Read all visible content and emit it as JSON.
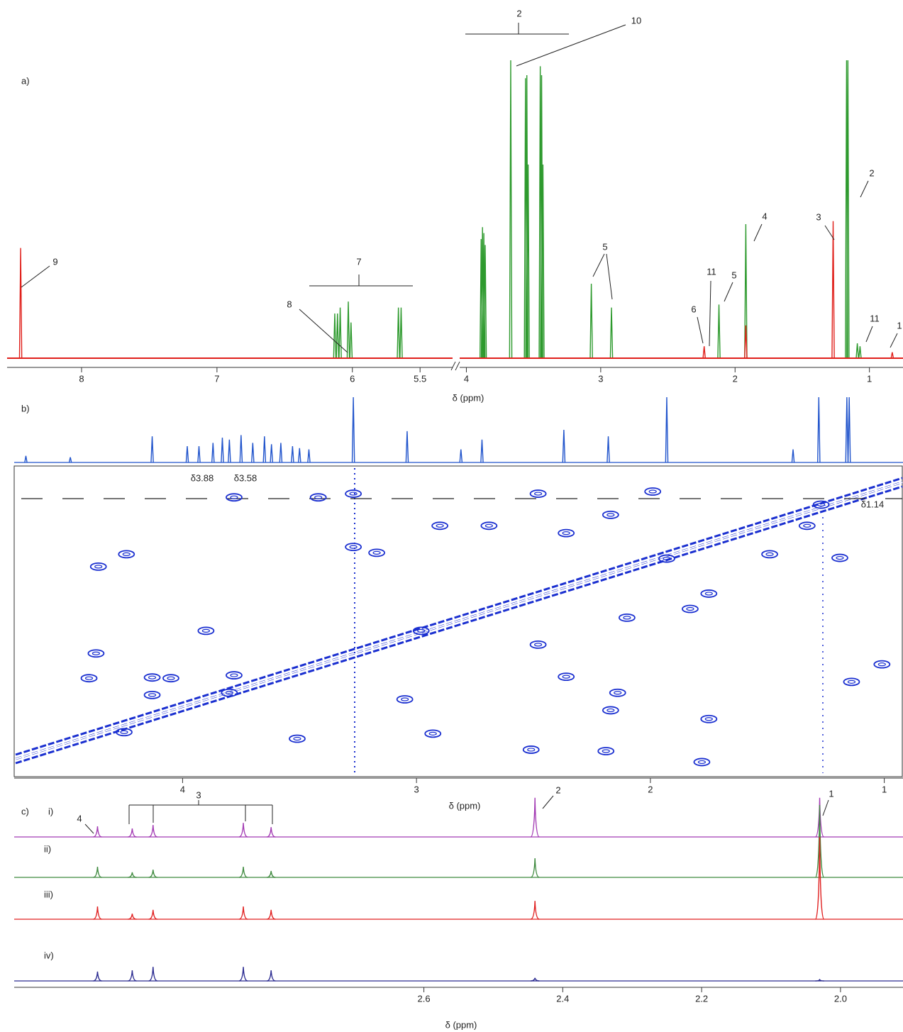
{
  "chart_data": [
    {
      "type": "spectrum",
      "label": "a)",
      "xlim": [
        8.55,
        5.26
      ],
      "xticks": [
        8,
        7,
        6,
        5.5
      ],
      "series": [
        {
          "color": "#2e9a2e",
          "x": [
            6.13,
            6.11,
            6.09,
            6.03,
            6.01,
            5.66,
            5.64
          ],
          "values": [
            15,
            15,
            17,
            19,
            12,
            17,
            17
          ]
        },
        {
          "color": "#e0201b",
          "x": [
            8.45
          ],
          "values": [
            37
          ]
        }
      ],
      "annotations": [
        "9",
        "7",
        "8"
      ]
    },
    {
      "type": "spectrum",
      "xlabel": "δ (ppm)",
      "xlim": [
        4.05,
        0.75
      ],
      "xticks": [
        4,
        3,
        2,
        1
      ],
      "series": [
        {
          "color": "#2e9a2e",
          "x": [
            3.89,
            3.88,
            3.87,
            3.86,
            3.67,
            3.56,
            3.55,
            3.54,
            3.45,
            3.44,
            3.43,
            3.07,
            2.92,
            2.12,
            1.92,
            1.17,
            1.16,
            1.09,
            1.07
          ],
          "values": [
            40,
            44,
            42,
            38,
            100,
            94,
            95,
            65,
            98,
            95,
            65,
            25,
            17,
            18,
            45,
            100,
            100,
            5,
            4
          ]
        },
        {
          "color": "#e0201b",
          "x": [
            2.23,
            1.92,
            1.27,
            0.83
          ],
          "values": [
            4,
            11,
            46,
            2
          ]
        }
      ],
      "annotations": [
        "2",
        "10",
        "5",
        "11",
        "5",
        "4",
        "6",
        "3",
        "2",
        "11",
        "1"
      ]
    },
    {
      "type": "cosy",
      "label": "b)",
      "xlabel": "δ (ppm)",
      "xlim": [
        4.72,
        0.92
      ],
      "ylim": [
        4.96,
        0.7
      ],
      "xticks": [
        4,
        3,
        2,
        1
      ],
      "series": [
        {
          "color": "#2255cc",
          "x": [
            4.67,
            4.48,
            4.13,
            3.98,
            3.93,
            3.87,
            3.83,
            3.8,
            3.75,
            3.7,
            3.65,
            3.62,
            3.58,
            3.53,
            3.5,
            3.46,
            3.27,
            3.04,
            2.81,
            2.72,
            2.37,
            2.18,
            1.93,
            1.39,
            1.28,
            1.16,
            1.15
          ],
          "values": [
            10,
            8,
            40,
            25,
            25,
            30,
            38,
            35,
            42,
            30,
            40,
            28,
            30,
            25,
            22,
            20,
            100,
            48,
            20,
            35,
            50,
            40,
            100,
            20,
            100,
            100,
            100
          ]
        }
      ],
      "cross_peaks": {
        "color": "#1a2fd0",
        "x": [
          4.4,
          4.37,
          4.13,
          4.13,
          4.05,
          3.9,
          3.8,
          3.78,
          4.36,
          4.24,
          3.27,
          3.17,
          3.05,
          2.98,
          2.48,
          2.36,
          2.17,
          2.14,
          2.1,
          1.93,
          1.83,
          1.49,
          1.19,
          1.33,
          1.27,
          2.17,
          2.48,
          3.78,
          3.42,
          3.27,
          2.9,
          2.69,
          2.36,
          1.99,
          1.75,
          1.14,
          1.01,
          1.75,
          2.19,
          2.51,
          1.78,
          4.25,
          3.51,
          2.93
        ],
        "y": [
          2.05,
          2.39,
          1.82,
          2.06,
          2.05,
          2.7,
          1.85,
          2.09,
          3.58,
          3.75,
          3.85,
          3.77,
          1.76,
          2.7,
          2.51,
          2.07,
          1.61,
          1.85,
          2.88,
          3.69,
          3.0,
          3.75,
          3.7,
          4.14,
          4.43,
          4.29,
          4.58,
          4.53,
          4.53,
          4.58,
          4.14,
          4.14,
          4.04,
          4.61,
          3.21,
          2.0,
          2.24,
          1.49,
          1.05,
          1.07,
          0.9,
          1.31,
          1.22,
          1.29
        ]
      },
      "annotations": [
        "δ3.88",
        "δ3.58",
        "δ1.14"
      ]
    },
    {
      "type": "spectrum",
      "label": "c)",
      "xlabel": "δ (ppm)",
      "xlim": [
        3.19,
        1.91
      ],
      "xticks": [
        2.6,
        2.4,
        2.2,
        {
          "value": 2,
          "label": "2.0"
        }
      ],
      "series": [
        {
          "name": "i)",
          "color": "#a23ab3",
          "x": [
            3.07,
            3.02,
            2.99,
            2.86,
            2.82,
            2.44,
            2.03
          ],
          "values": [
            25,
            20,
            28,
            33,
            23,
            92,
            92
          ]
        },
        {
          "name": "ii)",
          "color": "#3f8a3f",
          "x": [
            3.07,
            3.02,
            2.99,
            2.86,
            2.82,
            2.44,
            2.03
          ],
          "values": [
            25,
            12,
            18,
            25,
            15,
            45,
            170
          ]
        },
        {
          "name": "iii)",
          "color": "#e02020",
          "x": [
            3.07,
            3.02,
            2.99,
            2.86,
            2.82,
            2.44,
            2.03
          ],
          "values": [
            30,
            13,
            22,
            30,
            22,
            43,
            193
          ]
        },
        {
          "name": "iv)",
          "color": "#2a2a90",
          "x": [
            3.07,
            3.02,
            2.99,
            2.86,
            2.82,
            2.44,
            2.03
          ],
          "values": [
            22,
            25,
            33,
            33,
            25,
            7,
            3
          ]
        }
      ],
      "annotations": [
        "4",
        "3",
        "2",
        "1"
      ]
    }
  ]
}
